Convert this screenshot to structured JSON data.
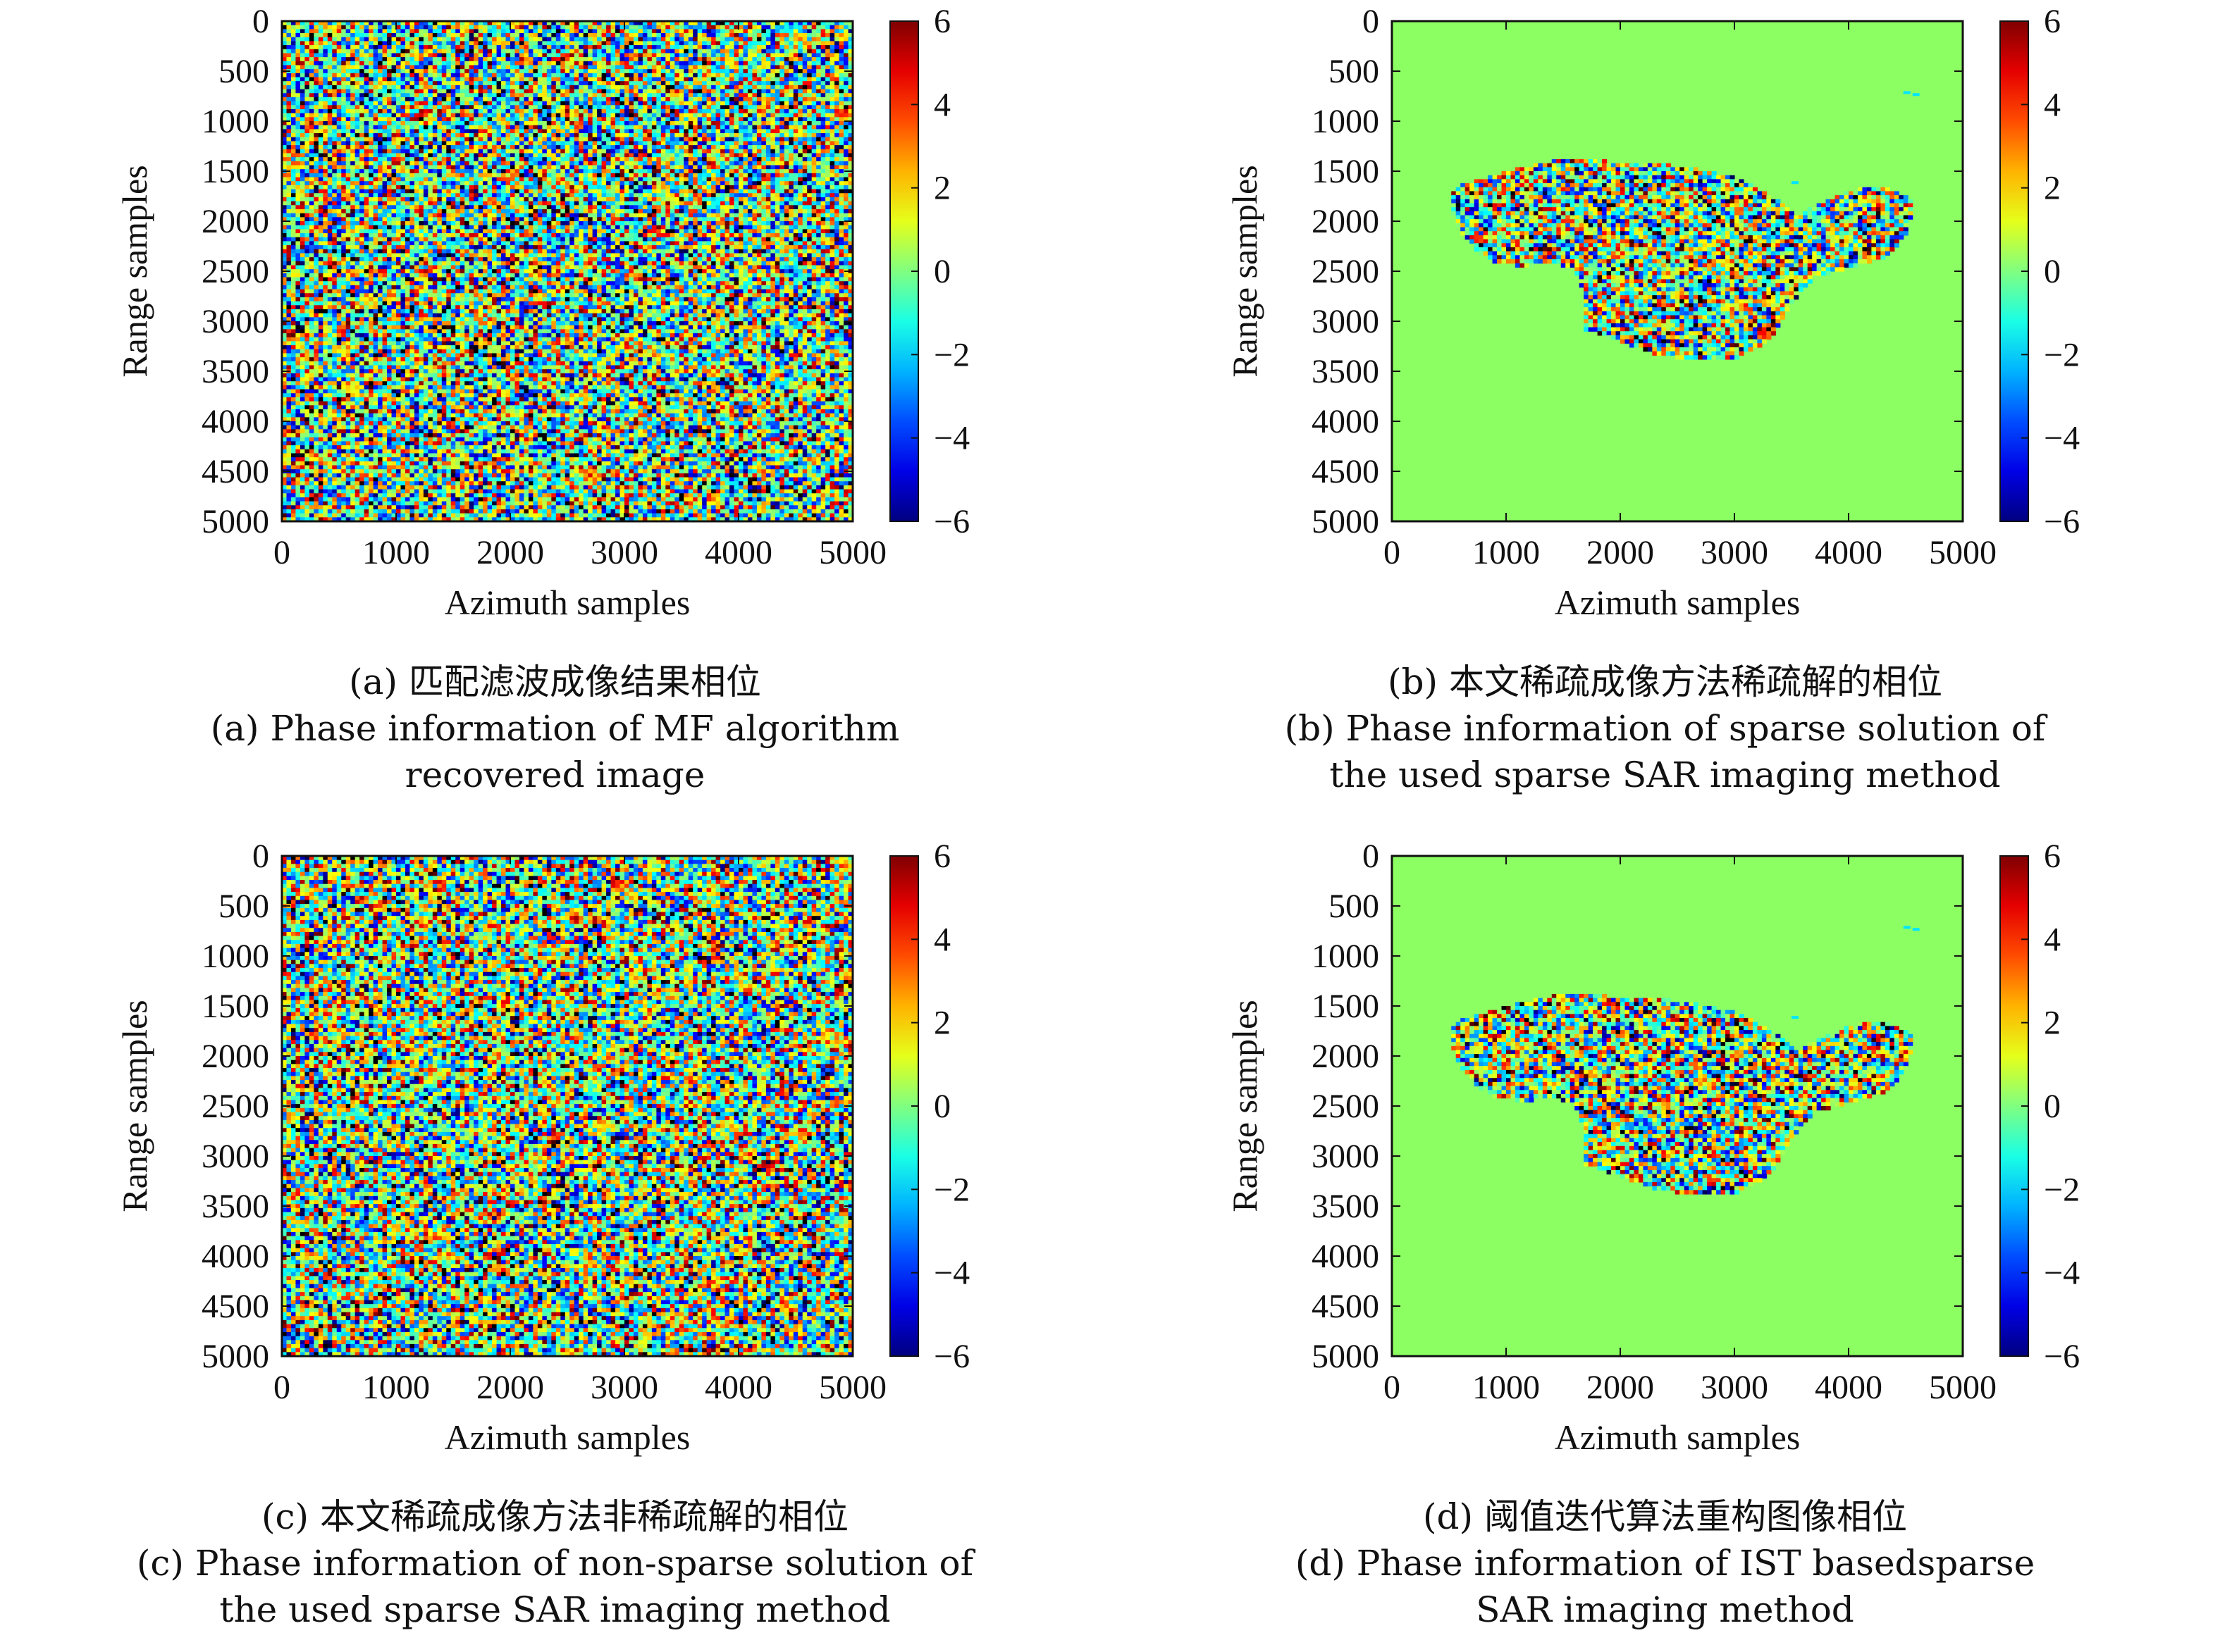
{
  "colors": {
    "flat_phase_background": "#8cff63",
    "colormap": "jet"
  },
  "chart_data": [
    {
      "type": "heatmap",
      "panel": "a",
      "content": "noise",
      "xlabel": "Azimuth samples",
      "ylabel": "Range samples",
      "xlim": [
        0,
        5000
      ],
      "ylim": [
        0,
        5000
      ],
      "xticks": [
        "0",
        "1000",
        "2000",
        "3000",
        "4000",
        "5000"
      ],
      "yticks": [
        "0",
        "500",
        "1000",
        "1500",
        "2000",
        "2500",
        "3000",
        "3500",
        "4000",
        "4500",
        "5000"
      ],
      "colorbar": {
        "min": -6,
        "max": 6,
        "ticks": [
          "6",
          "4",
          "2",
          "0",
          "−2",
          "−4",
          "−6"
        ]
      },
      "caption_cn": "(a) 匹配滤波成像结果相位",
      "caption_en": [
        "(a) Phase information of MF algorithm",
        "recovered image"
      ]
    },
    {
      "type": "heatmap",
      "panel": "b",
      "content": "island",
      "xlabel": "Azimuth samples",
      "ylabel": "Range samples",
      "xlim": [
        0,
        5000
      ],
      "ylim": [
        0,
        5000
      ],
      "xticks": [
        "0",
        "1000",
        "2000",
        "3000",
        "4000",
        "5000"
      ],
      "yticks": [
        "0",
        "500",
        "1000",
        "1500",
        "2000",
        "2500",
        "3000",
        "3500",
        "4000",
        "4500",
        "5000"
      ],
      "colorbar": {
        "min": -6,
        "max": 6,
        "ticks": [
          "6",
          "4",
          "2",
          "0",
          "−2",
          "−4",
          "−6"
        ]
      },
      "caption_cn": "(b) 本文稀疏成像方法稀疏解的相位",
      "caption_en": [
        "(b) Phase information of sparse solution of",
        "the used sparse SAR imaging method"
      ]
    },
    {
      "type": "heatmap",
      "panel": "c",
      "content": "noise",
      "xlabel": "Azimuth samples",
      "ylabel": "Range samples",
      "xlim": [
        0,
        5000
      ],
      "ylim": [
        0,
        5000
      ],
      "xticks": [
        "0",
        "1000",
        "2000",
        "3000",
        "4000",
        "5000"
      ],
      "yticks": [
        "0",
        "500",
        "1000",
        "1500",
        "2000",
        "2500",
        "3000",
        "3500",
        "4000",
        "4500",
        "5000"
      ],
      "colorbar": {
        "min": -6,
        "max": 6,
        "ticks": [
          "6",
          "4",
          "2",
          "0",
          "−2",
          "−4",
          "−6"
        ]
      },
      "caption_cn": "(c) 本文稀疏成像方法非稀疏解的相位",
      "caption_en": [
        "(c) Phase information of non-sparse solution of",
        "the used sparse SAR imaging method"
      ]
    },
    {
      "type": "heatmap",
      "panel": "d",
      "content": "island",
      "xlabel": "Azimuth samples",
      "ylabel": "Range samples",
      "xlim": [
        0,
        5000
      ],
      "ylim": [
        0,
        5000
      ],
      "xticks": [
        "0",
        "1000",
        "2000",
        "3000",
        "4000",
        "5000"
      ],
      "yticks": [
        "0",
        "500",
        "1000",
        "1500",
        "2000",
        "2500",
        "3000",
        "3500",
        "4000",
        "4500",
        "5000"
      ],
      "colorbar": {
        "min": -6,
        "max": 6,
        "ticks": [
          "6",
          "4",
          "2",
          "0",
          "−2",
          "−4",
          "−6"
        ]
      },
      "caption_cn": "(d) 阈值迭代算法重构图像相位",
      "caption_en": [
        "(d) Phase information of IST basedsparse",
        "SAR imaging method"
      ]
    }
  ]
}
